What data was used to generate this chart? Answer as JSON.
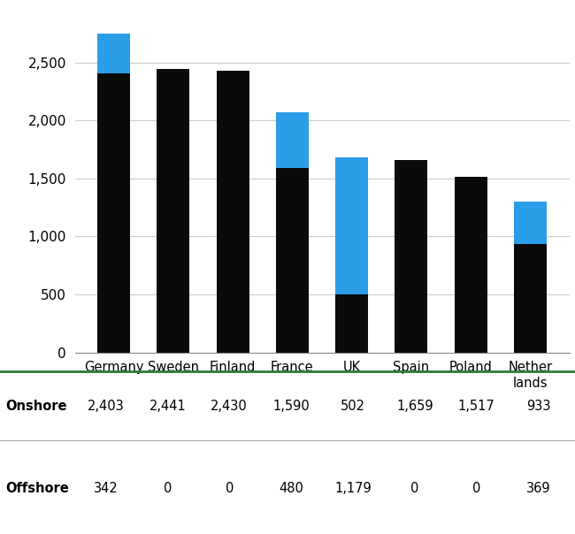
{
  "categories": [
    "Germany",
    "Sweden",
    "Finland",
    "France",
    "UK",
    "Spain",
    "Poland",
    "Nether\nlands"
  ],
  "onshore": [
    2403,
    2441,
    2430,
    1590,
    502,
    1659,
    1517,
    933
  ],
  "offshore": [
    342,
    0,
    0,
    480,
    1179,
    0,
    0,
    369
  ],
  "onshore_color": "#0a0a0a",
  "offshore_color": "#2b9de8",
  "background_color": "#ffffff",
  "ylim": [
    0,
    2900
  ],
  "yticks": [
    0,
    500,
    1000,
    1500,
    2000,
    2500
  ],
  "bar_width": 0.55,
  "table_labels": [
    "Onshore",
    "Offshore"
  ],
  "onshore_values": [
    "2,403",
    "2,441",
    "2,430",
    "1,590",
    "502",
    "1,659",
    "1,517",
    "933"
  ],
  "offshore_values": [
    "342",
    "0",
    "0",
    "480",
    "1,179",
    "0",
    "0",
    "369"
  ],
  "separator_color": "#2e7d32",
  "thin_line_color": "#aaaaaa",
  "font_size_table": 10.5,
  "font_size_ytick": 11,
  "font_size_xtick": 10.5
}
